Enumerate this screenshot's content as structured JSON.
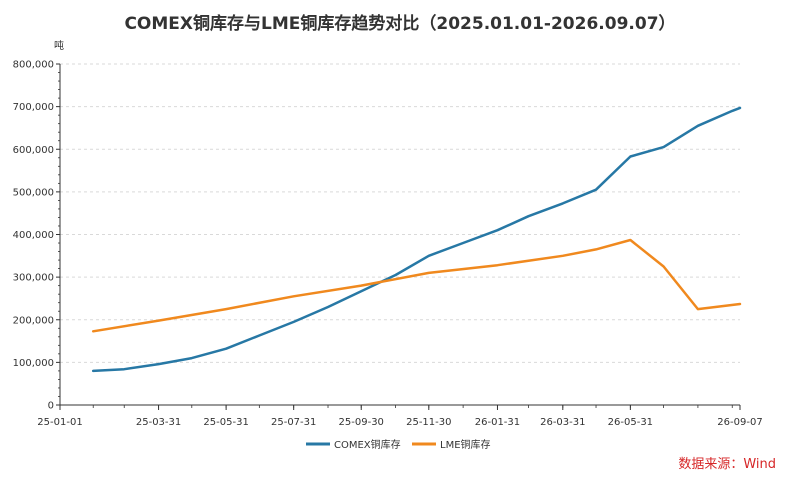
{
  "chart_data": {
    "type": "line",
    "title": "COMEX铜库存与LME铜库存趋势对比（2025.01.01-2026.09.07）",
    "y_unit": "吨",
    "ylim": [
      0,
      800000
    ],
    "y_ticks": [
      "0",
      "100,000",
      "200,000",
      "300,000",
      "400,000",
      "500,000",
      "600,000",
      "700,000",
      "800,000"
    ],
    "x_ticks": [
      "25-01-01",
      "25-03-31",
      "25-05-31",
      "25-07-31",
      "25-09-30",
      "25-11-30",
      "26-01-31",
      "26-03-31",
      "26-05-31",
      "26-09-07"
    ],
    "x_tick_dates": [
      "2025-01-01",
      "2025-03-31",
      "2025-05-31",
      "2025-07-31",
      "2025-09-30",
      "2025-11-30",
      "2026-01-31",
      "2026-03-31",
      "2026-05-31",
      "2026-09-07"
    ],
    "x_range": [
      "2025-01-01",
      "2026-09-07"
    ],
    "grid": true,
    "legend_position": "bottom",
    "series": [
      {
        "name": "COMEX铜库存",
        "color": "#2778a5",
        "x": [
          "2025-01-31",
          "2025-02-28",
          "2025-03-31",
          "2025-04-30",
          "2025-05-31",
          "2025-06-30",
          "2025-07-31",
          "2025-08-31",
          "2025-09-30",
          "2025-10-31",
          "2025-11-30",
          "2025-12-31",
          "2026-01-31",
          "2026-02-28",
          "2026-03-31",
          "2026-04-30",
          "2026-05-31",
          "2026-06-30",
          "2026-07-31",
          "2026-08-31",
          "2026-09-07"
        ],
        "values": [
          80000,
          84000,
          96000,
          110000,
          132000,
          163000,
          195000,
          230000,
          267000,
          305000,
          350000,
          380000,
          410000,
          443000,
          473000,
          505000,
          583000,
          605000,
          655000,
          690000,
          697000
        ]
      },
      {
        "name": "LME铜库存",
        "color": "#f0891e",
        "x": [
          "2025-01-31",
          "2025-03-31",
          "2025-05-31",
          "2025-07-31",
          "2025-09-30",
          "2025-11-30",
          "2026-01-31",
          "2026-03-31",
          "2026-04-30",
          "2026-05-31",
          "2026-06-30",
          "2026-07-31",
          "2026-09-07"
        ],
        "values": [
          173000,
          198000,
          225000,
          255000,
          280000,
          310000,
          328000,
          350000,
          365000,
          387000,
          325000,
          225000,
          237000
        ]
      }
    ]
  },
  "source_note": "数据来源：Wind"
}
